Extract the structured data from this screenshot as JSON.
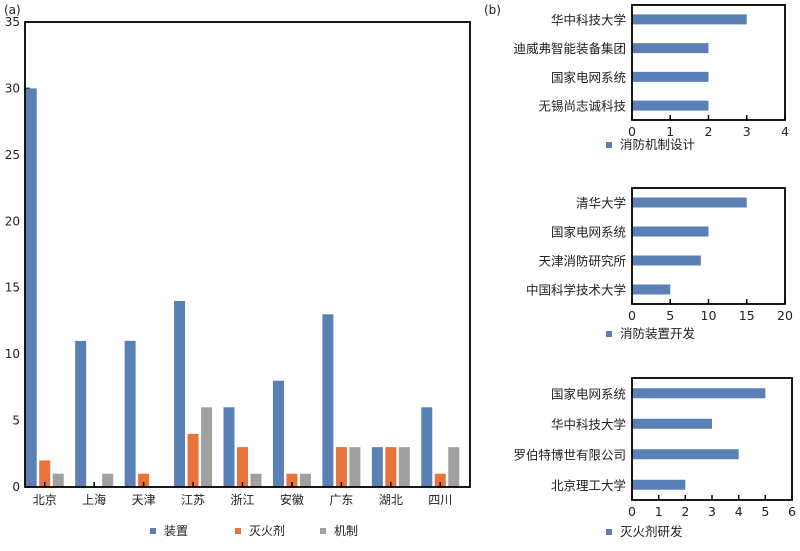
{
  "chart_data": [
    {
      "type": "bar",
      "panel_label": "(a)",
      "categories": [
        "北京",
        "上海",
        "天津",
        "江苏",
        "浙江",
        "安徽",
        "广东",
        "湖北",
        "四川"
      ],
      "series": [
        {
          "name": "装置",
          "color": "#5b80b6",
          "values": [
            30,
            11,
            11,
            14,
            6,
            8,
            13,
            3,
            6
          ]
        },
        {
          "name": "灭火剂",
          "color": "#e8743b",
          "values": [
            2,
            0,
            1,
            4,
            3,
            1,
            3,
            3,
            1
          ]
        },
        {
          "name": "机制",
          "color": "#a0a0a0",
          "values": [
            1,
            1,
            0,
            6,
            1,
            1,
            3,
            3,
            3
          ]
        }
      ],
      "ylim": [
        0,
        35
      ],
      "yticks": [
        0,
        5,
        10,
        15,
        20,
        25,
        30,
        35
      ],
      "legend": "bottom",
      "grid": false
    },
    {
      "type": "barh",
      "panel_label": "(b)",
      "categories": [
        "华中科技大学",
        "迪威弗智能装备集团",
        "国家电网系统",
        "无锡尚志诚科技"
      ],
      "series": [
        {
          "name": "消防机制设计",
          "color": "#5b80b6",
          "values": [
            3,
            2,
            2,
            2
          ]
        }
      ],
      "xlim": [
        0,
        4
      ],
      "xticks": [
        0,
        1,
        2,
        3,
        4
      ],
      "legend": "bottom"
    },
    {
      "type": "barh",
      "categories": [
        "清华大学",
        "国家电网系统",
        "天津消防研究所",
        "中国科学技术大学"
      ],
      "series": [
        {
          "name": "消防装置开发",
          "color": "#5b80b6",
          "values": [
            15,
            10,
            9,
            5
          ]
        }
      ],
      "xlim": [
        0,
        20
      ],
      "xticks": [
        0,
        5,
        10,
        15,
        20
      ],
      "legend": "bottom"
    },
    {
      "type": "barh",
      "categories": [
        "国家电网系统",
        "华中科技大学",
        "罗伯特博世有限公司",
        "北京理工大学"
      ],
      "series": [
        {
          "name": "灭火剂研发",
          "color": "#5b80b6",
          "values": [
            5,
            3,
            4,
            2
          ]
        }
      ],
      "xlim": [
        0,
        6
      ],
      "xticks": [
        0,
        1,
        2,
        3,
        4,
        5,
        6
      ],
      "legend": "bottom"
    }
  ]
}
